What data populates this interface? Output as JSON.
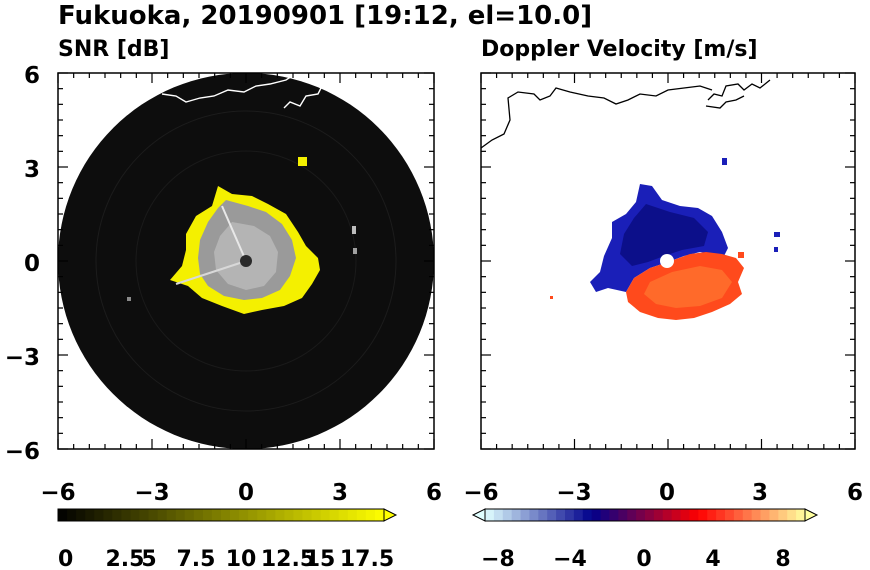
{
  "figure": {
    "title": "Fukuoka, 20190901 [19:12, el=10.0]"
  },
  "chart_data": [
    {
      "type": "heatmap",
      "title": "SNR [dB]",
      "xlim": [
        -6,
        6
      ],
      "ylim": [
        -6,
        6
      ],
      "xticks": [
        "−6",
        "−3",
        "0",
        "3",
        "6"
      ],
      "yticks": [
        "6",
        "3",
        "0",
        "−3",
        "−6"
      ],
      "grid": false,
      "colorbar": {
        "min": 0,
        "max": 18,
        "extend": "max",
        "ticks": [
          "0",
          "2.5",
          "5",
          "7.5",
          "10",
          "12.5",
          "15",
          "17.5"
        ],
        "colors": [
          "#000000",
          "#ffff00"
        ]
      }
    },
    {
      "type": "heatmap",
      "title": "Doppler Velocity [m/s]",
      "xlim": [
        -6,
        6
      ],
      "ylim": [
        -6,
        6
      ],
      "xticks": [
        "−6",
        "−3",
        "0",
        "3",
        "6"
      ],
      "yticks": [],
      "grid": false,
      "colorbar": {
        "min": -10,
        "max": 10,
        "extend": "both",
        "ticks": [
          "−8",
          "−4",
          "0",
          "4",
          "8"
        ],
        "colors": [
          "#e0ffff",
          "#00008b",
          "#ff0000",
          "#ffff9f"
        ]
      }
    }
  ]
}
